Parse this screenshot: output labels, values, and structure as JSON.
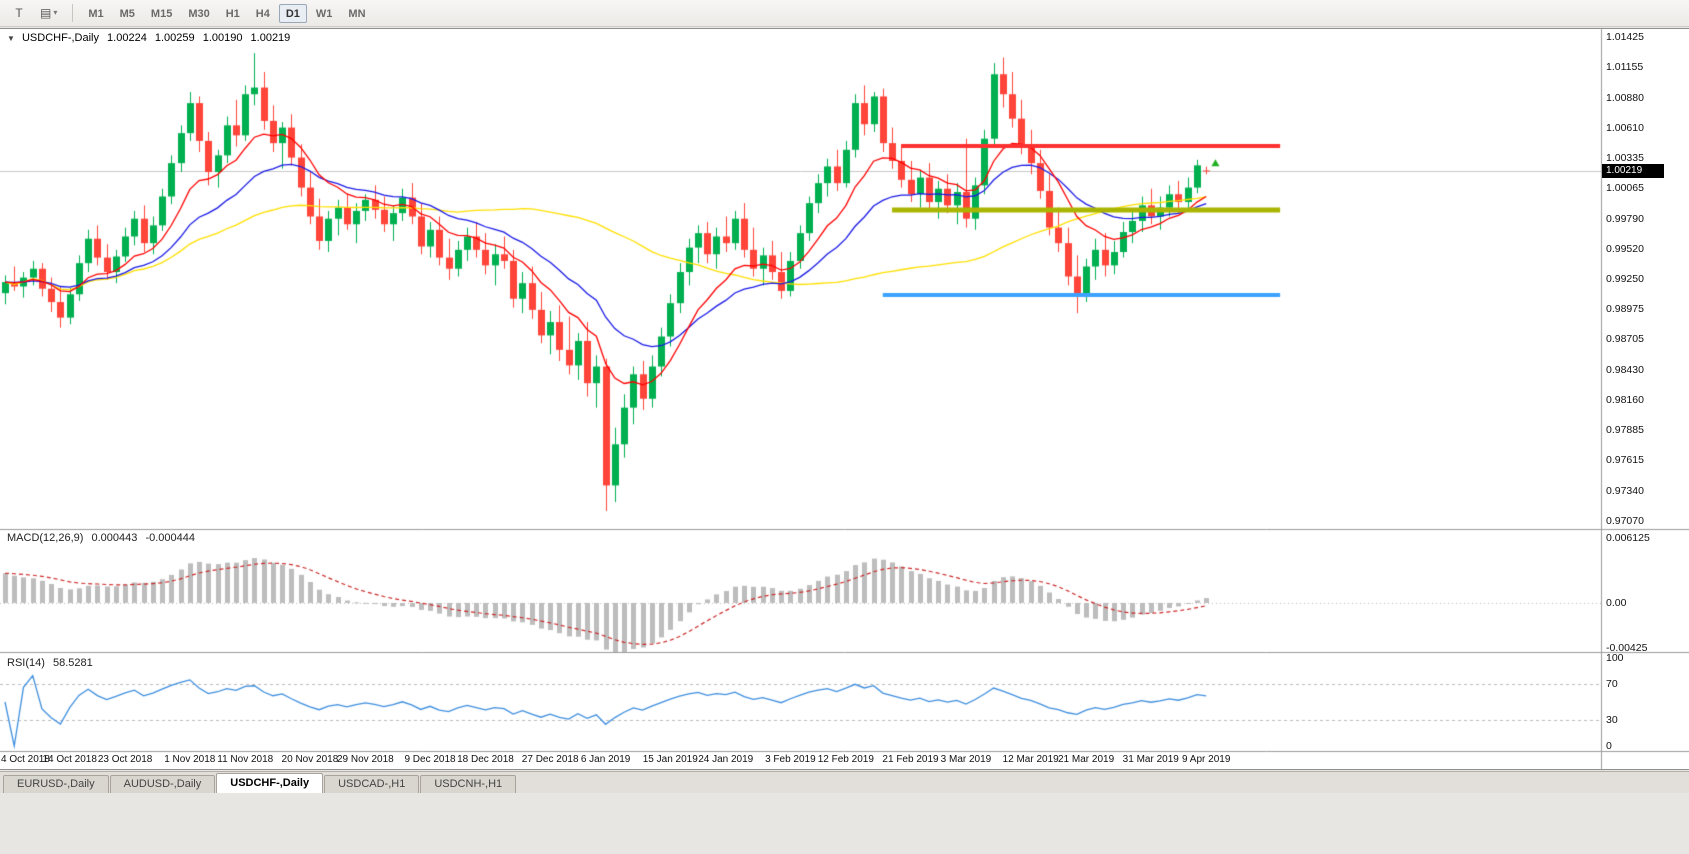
{
  "icons": {
    "collapse": "▼",
    "caret": "▾",
    "tool1": "T",
    "tool2": "▤"
  },
  "toolbar": {
    "tool_buttons": [
      {
        "name": "chart-tool"
      },
      {
        "name": "templates-dropdown"
      }
    ],
    "timeframes": [
      "M1",
      "M5",
      "M15",
      "M30",
      "H1",
      "H4",
      "D1",
      "W1",
      "MN"
    ],
    "active_timeframe": "D1"
  },
  "header": {
    "symbol": "USDCHF-,Daily",
    "open": "1.00224",
    "high": "1.00259",
    "low": "1.00190",
    "close": "1.00219"
  },
  "macd_panel": {
    "label": "MACD(12,26,9)",
    "main_value": "0.000443",
    "signal_value": "-0.000444"
  },
  "rsi_panel": {
    "label": "RSI(14)",
    "value": "58.5281"
  },
  "tabs": [
    "EURUSD-,Daily",
    "AUDUSD-,Daily",
    "USDCHF-,Daily",
    "USDCAD-,H1",
    "USDCNH-,H1"
  ],
  "active_tab_index": 2,
  "colors": {
    "bull": "#00b050",
    "bear": "#ff443a",
    "ma_fast": "#ff0000",
    "ma_mid": "#1a1ae6",
    "ma_slow": "#ffdf00",
    "macd_hist": "#bdbdbd",
    "macd_signal": "#cc2a2a",
    "rsi": "#3e8ede",
    "level_red": "#ff3030",
    "level_olive": "#a9b500",
    "level_blue": "#3da2ff",
    "price_line": "#c8c8c8",
    "badge_bg": "#000000",
    "badge_fg": "#ffffff",
    "grid_dash": "#bbbbbb"
  },
  "chart_data": {
    "type": "candlestick",
    "title": "USDCHF-,Daily",
    "ylim": [
      0.9707,
      1.01425
    ],
    "y_tick_labels": [
      "1.01425",
      "1.01155",
      "1.00880",
      "1.00610",
      "1.00335",
      "1.00065",
      "0.99790",
      "0.99520",
      "0.99250",
      "0.98975",
      "0.98705",
      "0.98430",
      "0.98160",
      "0.97885",
      "0.97615",
      "0.97340",
      "0.97070"
    ],
    "x_tick_labels": [
      "4 Oct 2018",
      "14 Oct 2018",
      "23 Oct 2018",
      "1 Nov 2018",
      "11 Nov 2018",
      "20 Nov 2018",
      "29 Nov 2018",
      "9 Dec 2018",
      "18 Dec 2018",
      "27 Dec 2018",
      "6 Jan 2019",
      "15 Jan 2019",
      "24 Jan 2019",
      "3 Feb 2019",
      "12 Feb 2019",
      "21 Feb 2019",
      "3 Mar 2019",
      "12 Mar 2019",
      "21 Mar 2019",
      "31 Mar 2019",
      "9 Apr 2019"
    ],
    "candles": [
      [
        0.9912,
        0.9928,
        0.9902,
        0.9922
      ],
      [
        0.9922,
        0.9936,
        0.9914,
        0.9918
      ],
      [
        0.9918,
        0.9931,
        0.9908,
        0.9926
      ],
      [
        0.9926,
        0.9941,
        0.9919,
        0.9934
      ],
      [
        0.9934,
        0.9939,
        0.9909,
        0.9916
      ],
      [
        0.9916,
        0.9926,
        0.9895,
        0.9904
      ],
      [
        0.9904,
        0.9918,
        0.9881,
        0.989
      ],
      [
        0.989,
        0.9917,
        0.9884,
        0.9911
      ],
      [
        0.9911,
        0.9946,
        0.9905,
        0.9939
      ],
      [
        0.9939,
        0.9969,
        0.9931,
        0.9961
      ],
      [
        0.9961,
        0.9973,
        0.9937,
        0.9944
      ],
      [
        0.9944,
        0.9956,
        0.9924,
        0.9931
      ],
      [
        0.9931,
        0.9951,
        0.9921,
        0.9945
      ],
      [
        0.9945,
        0.9971,
        0.994,
        0.9963
      ],
      [
        0.9963,
        0.9986,
        0.9955,
        0.9979
      ],
      [
        0.9979,
        0.9991,
        0.9949,
        0.9957
      ],
      [
        0.9957,
        0.9981,
        0.9947,
        0.9973
      ],
      [
        0.9973,
        1.0006,
        0.9968,
        0.9999
      ],
      [
        0.9999,
        1.0036,
        0.9992,
        1.0029
      ],
      [
        1.0029,
        1.0063,
        1.0021,
        1.0056
      ],
      [
        1.0056,
        1.0093,
        1.0049,
        1.0083
      ],
      [
        1.0083,
        1.0089,
        1.0039,
        1.0049
      ],
      [
        1.0049,
        1.0057,
        1.0009,
        1.0021
      ],
      [
        1.0021,
        1.0041,
        1.0007,
        1.0036
      ],
      [
        1.0036,
        1.0071,
        1.0029,
        1.0063
      ],
      [
        1.0063,
        1.0086,
        1.0044,
        1.0054
      ],
      [
        1.0054,
        1.0099,
        1.0049,
        1.0091
      ],
      [
        1.0091,
        1.0128,
        1.0081,
        1.0097
      ],
      [
        1.0097,
        1.0111,
        1.0059,
        1.0067
      ],
      [
        1.0067,
        1.0081,
        1.0039,
        1.0047
      ],
      [
        1.0047,
        1.0066,
        1.0024,
        1.0061
      ],
      [
        1.0061,
        1.0073,
        1.0027,
        1.0034
      ],
      [
        1.0034,
        1.0046,
        0.9999,
        1.0007
      ],
      [
        1.0007,
        1.0021,
        0.9974,
        0.9981
      ],
      [
        0.9981,
        0.9997,
        0.9951,
        0.9959
      ],
      [
        0.9959,
        0.9986,
        0.9949,
        0.9979
      ],
      [
        0.9979,
        0.9996,
        0.9964,
        0.9989
      ],
      [
        0.9989,
        1.0001,
        0.9969,
        0.9974
      ],
      [
        0.9974,
        0.9993,
        0.9957,
        0.9986
      ],
      [
        0.9986,
        1.0001,
        0.9977,
        0.9996
      ],
      [
        0.9996,
        1.0009,
        0.9979,
        0.9987
      ],
      [
        0.9987,
        0.9999,
        0.9967,
        0.9974
      ],
      [
        0.9974,
        0.9991,
        0.9959,
        0.9984
      ],
      [
        0.9984,
        1.0006,
        0.9977,
        0.9998
      ],
      [
        0.9998,
        1.0011,
        0.9974,
        0.9981
      ],
      [
        0.9981,
        0.9993,
        0.9947,
        0.9954
      ],
      [
        0.9954,
        0.9976,
        0.9944,
        0.9969
      ],
      [
        0.9969,
        0.9981,
        0.9937,
        0.9944
      ],
      [
        0.9944,
        0.9961,
        0.9924,
        0.9934
      ],
      [
        0.9934,
        0.9959,
        0.9927,
        0.9951
      ],
      [
        0.9951,
        0.9971,
        0.9941,
        0.9963
      ],
      [
        0.9963,
        0.9976,
        0.9944,
        0.9951
      ],
      [
        0.9951,
        0.9966,
        0.9929,
        0.9937
      ],
      [
        0.9937,
        0.9956,
        0.9919,
        0.9947
      ],
      [
        0.9947,
        0.9963,
        0.9934,
        0.9941
      ],
      [
        0.9941,
        0.9951,
        0.9899,
        0.9907
      ],
      [
        0.9907,
        0.9931,
        0.9894,
        0.9921
      ],
      [
        0.9921,
        0.9936,
        0.9889,
        0.9897
      ],
      [
        0.9897,
        0.9913,
        0.9867,
        0.9874
      ],
      [
        0.9874,
        0.9896,
        0.9857,
        0.9886
      ],
      [
        0.9886,
        0.9901,
        0.9851,
        0.9861
      ],
      [
        0.9861,
        0.9891,
        0.9839,
        0.9847
      ],
      [
        0.9847,
        0.9876,
        0.9834,
        0.9869
      ],
      [
        0.9869,
        0.9886,
        0.9819,
        0.9831
      ],
      [
        0.9831,
        0.9856,
        0.9809,
        0.9846
      ],
      [
        0.9846,
        0.9853,
        0.9716,
        0.9739
      ],
      [
        0.9739,
        0.9791,
        0.9724,
        0.9776
      ],
      [
        0.9776,
        0.9821,
        0.9764,
        0.9809
      ],
      [
        0.9809,
        0.9846,
        0.9794,
        0.9839
      ],
      [
        0.9839,
        0.9851,
        0.9807,
        0.9817
      ],
      [
        0.9817,
        0.9856,
        0.9809,
        0.9846
      ],
      [
        0.9846,
        0.9881,
        0.9837,
        0.9873
      ],
      [
        0.9873,
        0.9911,
        0.9864,
        0.9903
      ],
      [
        0.9903,
        0.9939,
        0.9894,
        0.9931
      ],
      [
        0.9931,
        0.9961,
        0.9919,
        0.9953
      ],
      [
        0.9953,
        0.9973,
        0.9939,
        0.9966
      ],
      [
        0.9966,
        0.9976,
        0.9939,
        0.9947
      ],
      [
        0.9947,
        0.9971,
        0.9934,
        0.9963
      ],
      [
        0.9963,
        0.9981,
        0.9949,
        0.9957
      ],
      [
        0.9957,
        0.9986,
        0.9951,
        0.9979
      ],
      [
        0.9979,
        0.9993,
        0.9944,
        0.9951
      ],
      [
        0.9951,
        0.9971,
        0.9927,
        0.9934
      ],
      [
        0.9934,
        0.9953,
        0.9919,
        0.9946
      ],
      [
        0.9946,
        0.9959,
        0.9924,
        0.9931
      ],
      [
        0.9931,
        0.9949,
        0.9907,
        0.9914
      ],
      [
        0.9914,
        0.9949,
        0.9909,
        0.9941
      ],
      [
        0.9941,
        0.9973,
        0.9934,
        0.9966
      ],
      [
        0.9966,
        0.9999,
        0.9959,
        0.9993
      ],
      [
        0.9993,
        1.0019,
        0.9984,
        1.0011
      ],
      [
        1.0011,
        1.0033,
        0.9999,
        1.0026
      ],
      [
        1.0026,
        1.0041,
        1.0004,
        1.0011
      ],
      [
        1.0011,
        1.0049,
        1.0007,
        1.0041
      ],
      [
        1.0041,
        1.0091,
        1.0034,
        1.0083
      ],
      [
        1.0083,
        1.0099,
        1.0054,
        1.0064
      ],
      [
        1.0064,
        1.0093,
        1.0057,
        1.0089
      ],
      [
        1.0089,
        1.0096,
        1.0039,
        1.0047
      ],
      [
        1.0047,
        1.0061,
        1.0024,
        1.0031
      ],
      [
        1.0031,
        1.0046,
        1.0007,
        1.0014
      ],
      [
        1.0014,
        1.0031,
        0.9994,
        1.0001
      ],
      [
        1.0001,
        1.0023,
        0.9989,
        1.0016
      ],
      [
        1.0016,
        1.0029,
        0.9987,
        0.9994
      ],
      [
        0.9994,
        1.0013,
        0.9979,
        1.0006
      ],
      [
        1.0006,
        1.0019,
        0.9984,
        0.9991
      ],
      [
        0.9991,
        1.0011,
        0.9974,
        1.0003
      ],
      [
        1.0003,
        1.0051,
        0.9971,
        0.9979
      ],
      [
        0.9979,
        1.0016,
        0.9969,
        1.0009
      ],
      [
        1.0009,
        1.0059,
        1.0001,
        1.0051
      ],
      [
        1.0051,
        1.0119,
        1.0044,
        1.0109
      ],
      [
        1.0109,
        1.0124,
        1.0079,
        1.0091
      ],
      [
        1.0091,
        1.0111,
        1.0061,
        1.0069
      ],
      [
        1.0069,
        1.0086,
        1.0037,
        1.0044
      ],
      [
        1.0044,
        1.0059,
        1.0019,
        1.0029
      ],
      [
        1.0029,
        1.0041,
        0.9997,
        1.0004
      ],
      [
        1.0004,
        1.0019,
        0.9964,
        0.9971
      ],
      [
        0.9971,
        0.9989,
        0.9949,
        0.9957
      ],
      [
        0.9957,
        0.9971,
        0.9919,
        0.9927
      ],
      [
        0.9927,
        0.9946,
        0.9894,
        0.9911
      ],
      [
        0.9911,
        0.9943,
        0.9904,
        0.9936
      ],
      [
        0.9936,
        0.9961,
        0.9924,
        0.9951
      ],
      [
        0.9951,
        0.9966,
        0.9927,
        0.9937
      ],
      [
        0.9937,
        0.9959,
        0.9929,
        0.9949
      ],
      [
        0.9949,
        0.9976,
        0.9944,
        0.9967
      ],
      [
        0.9967,
        0.9986,
        0.9957,
        0.9977
      ],
      [
        0.9977,
        0.9999,
        0.9967,
        0.9991
      ],
      [
        0.9991,
        1.0006,
        0.9974,
        0.9981
      ],
      [
        0.9981,
        0.9999,
        0.9969,
        0.9989
      ],
      [
        0.9989,
        1.0009,
        0.9981,
        1.0001
      ],
      [
        1.0001,
        1.0013,
        0.9984,
        0.9994
      ],
      [
        0.9994,
        1.0016,
        0.9987,
        1.0007
      ],
      [
        1.0007,
        1.0032,
        1.0002,
        1.0027
      ],
      [
        1.00224,
        1.00259,
        1.0019,
        1.00219
      ]
    ],
    "indicators": {
      "moving_averages": [
        {
          "period": 50,
          "method": "sma",
          "color_key": "ma_slow"
        },
        {
          "period": 21,
          "method": "ema",
          "color_key": "ma_mid"
        },
        {
          "period": 10,
          "method": "ema",
          "color_key": "ma_fast"
        }
      ],
      "macd": {
        "fast": 12,
        "slow": 26,
        "signal": 9,
        "current_main": "0.000443",
        "current_signal": "-0.000444",
        "y_ticks": [
          "0.006125",
          "0.00",
          "-0.00425"
        ]
      },
      "rsi": {
        "period": 14,
        "current": "58.5281",
        "y_ticks": [
          "100",
          "70",
          "30",
          "0"
        ],
        "levels": [
          70,
          30
        ]
      }
    },
    "annotations": {
      "h_lines": [
        {
          "price": 1.0044,
          "color_key": "level_red",
          "width": 4,
          "x1_bar": 97,
          "x2_bar": 138
        },
        {
          "price": 0.9987,
          "color_key": "level_olive",
          "width": 5,
          "x1_bar": 96,
          "x2_bar": 138
        },
        {
          "price": 0.991,
          "color_key": "level_blue",
          "width": 4,
          "x1_bar": 95,
          "x2_bar": 138
        }
      ],
      "current_price": 1.00219,
      "marker": {
        "bar": 131,
        "price": 1.0029,
        "color": "#20b020"
      }
    }
  }
}
